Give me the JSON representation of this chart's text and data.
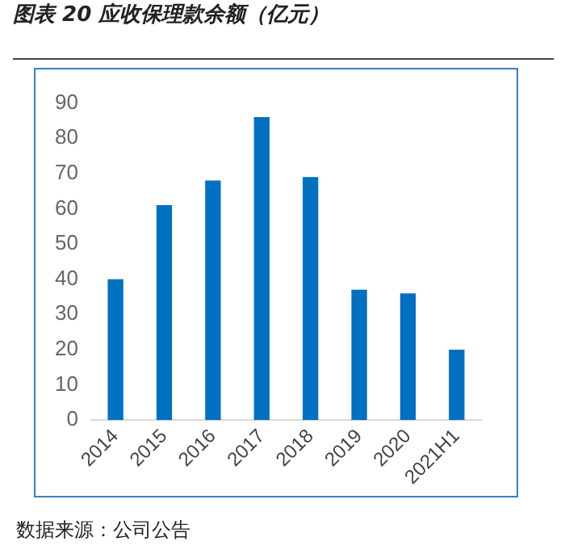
{
  "chart_data": {
    "type": "bar",
    "title": "图表 20  应收保理款余额（亿元）",
    "categories": [
      "2014",
      "2015",
      "2016",
      "2017",
      "2018",
      "2019",
      "2020",
      "2021H1"
    ],
    "values": [
      40,
      61,
      68,
      86,
      69,
      37,
      36,
      20
    ],
    "color": "#0070c0",
    "ylim": [
      0,
      90
    ],
    "yticks": [
      0,
      10,
      20,
      30,
      40,
      50,
      60,
      70,
      80,
      90
    ],
    "grid": false,
    "annotations": [
      "数据来源：公司公告"
    ]
  }
}
